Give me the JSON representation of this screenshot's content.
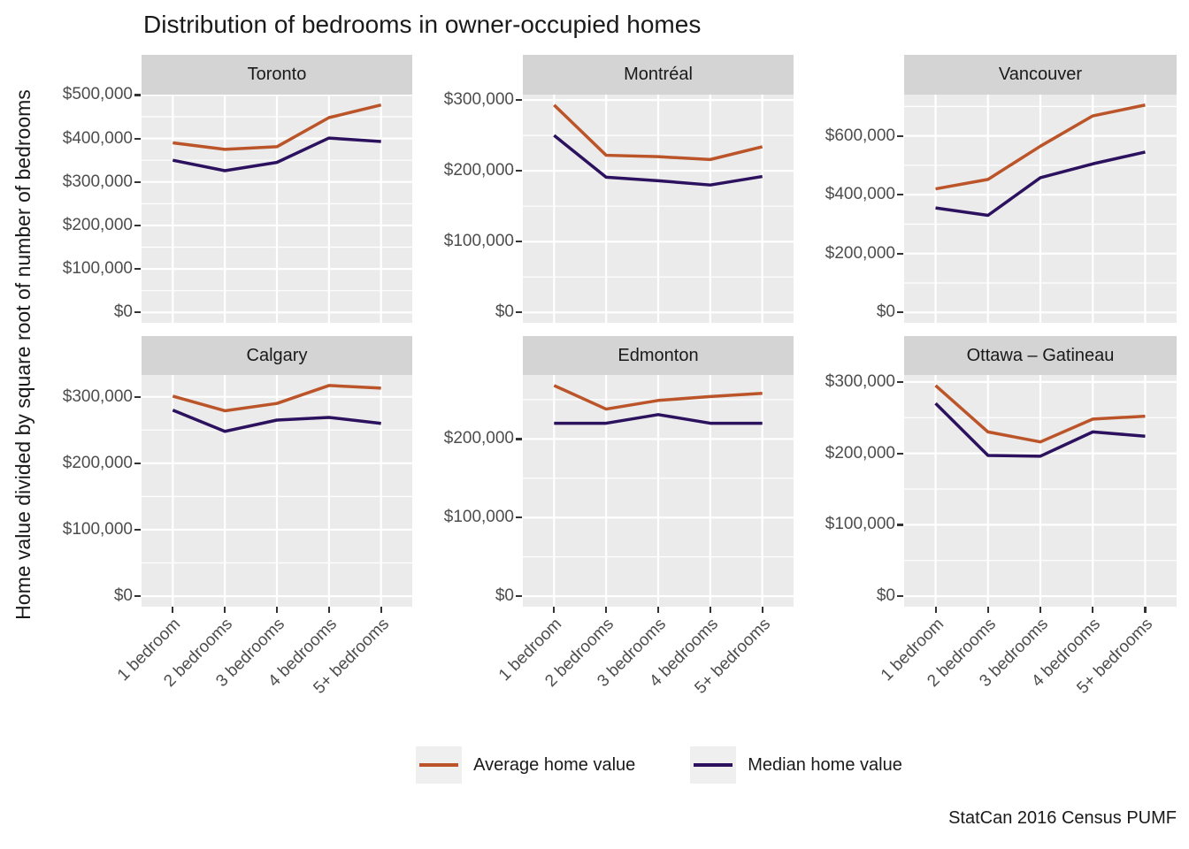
{
  "title": "Distribution of bedrooms in owner-occupied homes",
  "y_axis_title": "Home value divided by square root of number of bedrooms",
  "caption": "StatCan 2016 Census PUMF",
  "legend": {
    "items": [
      {
        "label": "Average home value",
        "series": "average"
      },
      {
        "label": "Median home value",
        "series": "median"
      }
    ]
  },
  "colors": {
    "average": "#BB5529",
    "median": "#2B115E",
    "panel_bg": "#EBEBEB",
    "strip_bg": "#D4D4D4",
    "gridline": "#FFFFFF",
    "axis_text": "#4D4D4D",
    "tick_mark": "#333333",
    "text": "#1A1A1A",
    "legend_key_bg": "#EFEFEF"
  },
  "chart_data": {
    "type": "line",
    "title": "Distribution of bedrooms in owner-occupied homes",
    "ylabel": "Home value divided by square root of number of bedrooms",
    "caption": "StatCan 2016 Census PUMF",
    "categories": [
      "1 bedroom",
      "2 bedrooms",
      "3 bedrooms",
      "4 bedrooms",
      "5+ bedrooms"
    ],
    "series_names": [
      "Average home value",
      "Median home value"
    ],
    "legend_position": "bottom",
    "grid": true,
    "x_tick_rotation_deg": 45,
    "free_y_scales": true,
    "y_expansion_pct": 5,
    "facets": [
      {
        "name": "Toronto",
        "y_ticks": [
          0,
          100000,
          200000,
          300000,
          400000,
          500000
        ],
        "series": {
          "average": [
            390000,
            375000,
            381000,
            448000,
            477000
          ],
          "median": [
            350000,
            326000,
            345000,
            401000,
            393000
          ]
        }
      },
      {
        "name": "Montréal",
        "y_ticks": [
          0,
          100000,
          200000,
          300000
        ],
        "series": {
          "average": [
            293000,
            222000,
            220000,
            216000,
            234000
          ],
          "median": [
            250000,
            191000,
            186000,
            180000,
            192000
          ]
        }
      },
      {
        "name": "Vancouver",
        "y_ticks": [
          0,
          200000,
          400000,
          600000
        ],
        "series": {
          "average": [
            420000,
            452000,
            565000,
            668000,
            705000
          ],
          "median": [
            355000,
            330000,
            458000,
            505000,
            545000
          ]
        }
      },
      {
        "name": "Calgary",
        "y_ticks": [
          0,
          100000,
          200000,
          300000
        ],
        "series": {
          "average": [
            301000,
            279000,
            290000,
            317000,
            313000
          ],
          "median": [
            280000,
            248000,
            265000,
            269000,
            260000
          ]
        }
      },
      {
        "name": "Edmonton",
        "y_ticks": [
          0,
          100000,
          200000
        ],
        "series": {
          "average": [
            268000,
            238000,
            249000,
            254000,
            258000
          ],
          "median": [
            220000,
            220000,
            231000,
            220000,
            220000
          ]
        }
      },
      {
        "name": "Ottawa – Gatineau",
        "y_ticks": [
          0,
          100000,
          200000,
          300000
        ],
        "series": {
          "average": [
            295000,
            230000,
            216000,
            248000,
            252000
          ],
          "median": [
            270000,
            197000,
            196000,
            230000,
            224000
          ]
        }
      }
    ]
  }
}
